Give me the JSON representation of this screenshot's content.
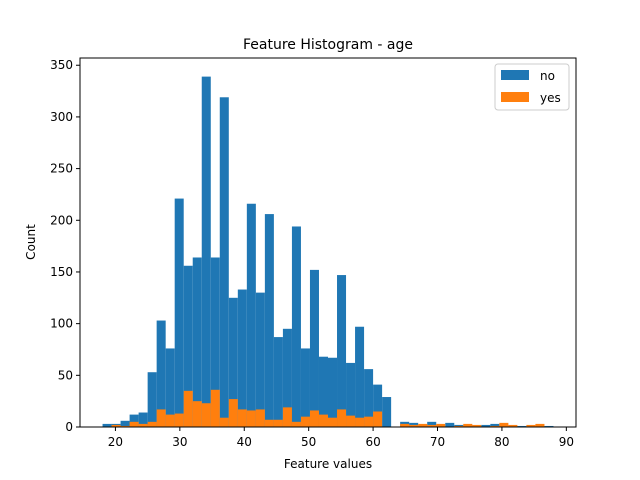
{
  "chart_data": {
    "type": "bar",
    "title": "Feature Histogram - age",
    "xlabel": "Feature values",
    "ylabel": "Count",
    "xlim": [
      14.5,
      91.5
    ],
    "ylim": [
      0,
      357
    ],
    "xticks": [
      20,
      30,
      40,
      50,
      60,
      70,
      80,
      90
    ],
    "yticks": [
      0,
      50,
      100,
      150,
      200,
      250,
      300,
      350
    ],
    "bin_width": 1.4,
    "legend_position": "top-right",
    "series": [
      {
        "name": "no",
        "color": "#1f77b4",
        "bins": [
          {
            "x": 18.0,
            "count": 3
          },
          {
            "x": 19.4,
            "count": 3
          },
          {
            "x": 20.8,
            "count": 6
          },
          {
            "x": 22.2,
            "count": 12
          },
          {
            "x": 23.6,
            "count": 14
          },
          {
            "x": 25.0,
            "count": 53
          },
          {
            "x": 26.4,
            "count": 103
          },
          {
            "x": 27.8,
            "count": 76
          },
          {
            "x": 29.2,
            "count": 221
          },
          {
            "x": 30.6,
            "count": 156
          },
          {
            "x": 32.0,
            "count": 164
          },
          {
            "x": 33.4,
            "count": 339
          },
          {
            "x": 34.8,
            "count": 164
          },
          {
            "x": 36.2,
            "count": 319
          },
          {
            "x": 37.6,
            "count": 125
          },
          {
            "x": 39.0,
            "count": 133
          },
          {
            "x": 40.4,
            "count": 216
          },
          {
            "x": 41.8,
            "count": 130
          },
          {
            "x": 43.2,
            "count": 206
          },
          {
            "x": 44.6,
            "count": 87
          },
          {
            "x": 46.0,
            "count": 95
          },
          {
            "x": 47.4,
            "count": 194
          },
          {
            "x": 48.8,
            "count": 76
          },
          {
            "x": 50.2,
            "count": 152
          },
          {
            "x": 51.6,
            "count": 68
          },
          {
            "x": 53.0,
            "count": 67
          },
          {
            "x": 54.4,
            "count": 147
          },
          {
            "x": 55.8,
            "count": 62
          },
          {
            "x": 57.2,
            "count": 97
          },
          {
            "x": 58.6,
            "count": 56
          },
          {
            "x": 60.0,
            "count": 41
          },
          {
            "x": 61.4,
            "count": 29
          },
          {
            "x": 62.8,
            "count": 0
          },
          {
            "x": 64.2,
            "count": 5
          },
          {
            "x": 65.6,
            "count": 4
          },
          {
            "x": 67.0,
            "count": 1
          },
          {
            "x": 68.4,
            "count": 5
          },
          {
            "x": 69.8,
            "count": 1
          },
          {
            "x": 71.2,
            "count": 4
          },
          {
            "x": 72.6,
            "count": 2
          },
          {
            "x": 74.0,
            "count": 2
          },
          {
            "x": 75.4,
            "count": 1
          },
          {
            "x": 76.8,
            "count": 2
          },
          {
            "x": 78.2,
            "count": 3
          },
          {
            "x": 79.6,
            "count": 1
          },
          {
            "x": 81.0,
            "count": 1
          },
          {
            "x": 82.4,
            "count": 1
          },
          {
            "x": 83.8,
            "count": 0
          },
          {
            "x": 85.2,
            "count": 1
          },
          {
            "x": 86.6,
            "count": 1
          }
        ]
      },
      {
        "name": "yes",
        "color": "#ff7f0e",
        "bins": [
          {
            "x": 18.0,
            "count": 0
          },
          {
            "x": 19.4,
            "count": 2
          },
          {
            "x": 20.8,
            "count": 1
          },
          {
            "x": 22.2,
            "count": 5
          },
          {
            "x": 23.6,
            "count": 3
          },
          {
            "x": 25.0,
            "count": 5
          },
          {
            "x": 26.4,
            "count": 17
          },
          {
            "x": 27.8,
            "count": 12
          },
          {
            "x": 29.2,
            "count": 13
          },
          {
            "x": 30.6,
            "count": 35
          },
          {
            "x": 32.0,
            "count": 25
          },
          {
            "x": 33.4,
            "count": 23
          },
          {
            "x": 34.8,
            "count": 36
          },
          {
            "x": 36.2,
            "count": 9
          },
          {
            "x": 37.6,
            "count": 27
          },
          {
            "x": 39.0,
            "count": 17
          },
          {
            "x": 40.4,
            "count": 16
          },
          {
            "x": 41.8,
            "count": 17
          },
          {
            "x": 43.2,
            "count": 7
          },
          {
            "x": 44.6,
            "count": 7
          },
          {
            "x": 46.0,
            "count": 19
          },
          {
            "x": 47.4,
            "count": 5
          },
          {
            "x": 48.8,
            "count": 10
          },
          {
            "x": 50.2,
            "count": 16
          },
          {
            "x": 51.6,
            "count": 12
          },
          {
            "x": 53.0,
            "count": 9
          },
          {
            "x": 54.4,
            "count": 17
          },
          {
            "x": 55.8,
            "count": 11
          },
          {
            "x": 57.2,
            "count": 9
          },
          {
            "x": 58.6,
            "count": 10
          },
          {
            "x": 60.0,
            "count": 15
          },
          {
            "x": 61.4,
            "count": 0
          },
          {
            "x": 62.8,
            "count": 0
          },
          {
            "x": 64.2,
            "count": 3
          },
          {
            "x": 65.6,
            "count": 2
          },
          {
            "x": 67.0,
            "count": 3
          },
          {
            "x": 68.4,
            "count": 2
          },
          {
            "x": 69.8,
            "count": 3
          },
          {
            "x": 71.2,
            "count": 0
          },
          {
            "x": 72.6,
            "count": 1
          },
          {
            "x": 74.0,
            "count": 3
          },
          {
            "x": 75.4,
            "count": 2
          },
          {
            "x": 76.8,
            "count": 0
          },
          {
            "x": 78.2,
            "count": 1
          },
          {
            "x": 79.6,
            "count": 4
          },
          {
            "x": 81.0,
            "count": 2
          },
          {
            "x": 82.4,
            "count": 0
          },
          {
            "x": 83.8,
            "count": 2
          },
          {
            "x": 85.2,
            "count": 3
          },
          {
            "x": 86.6,
            "count": 0
          }
        ]
      }
    ]
  }
}
